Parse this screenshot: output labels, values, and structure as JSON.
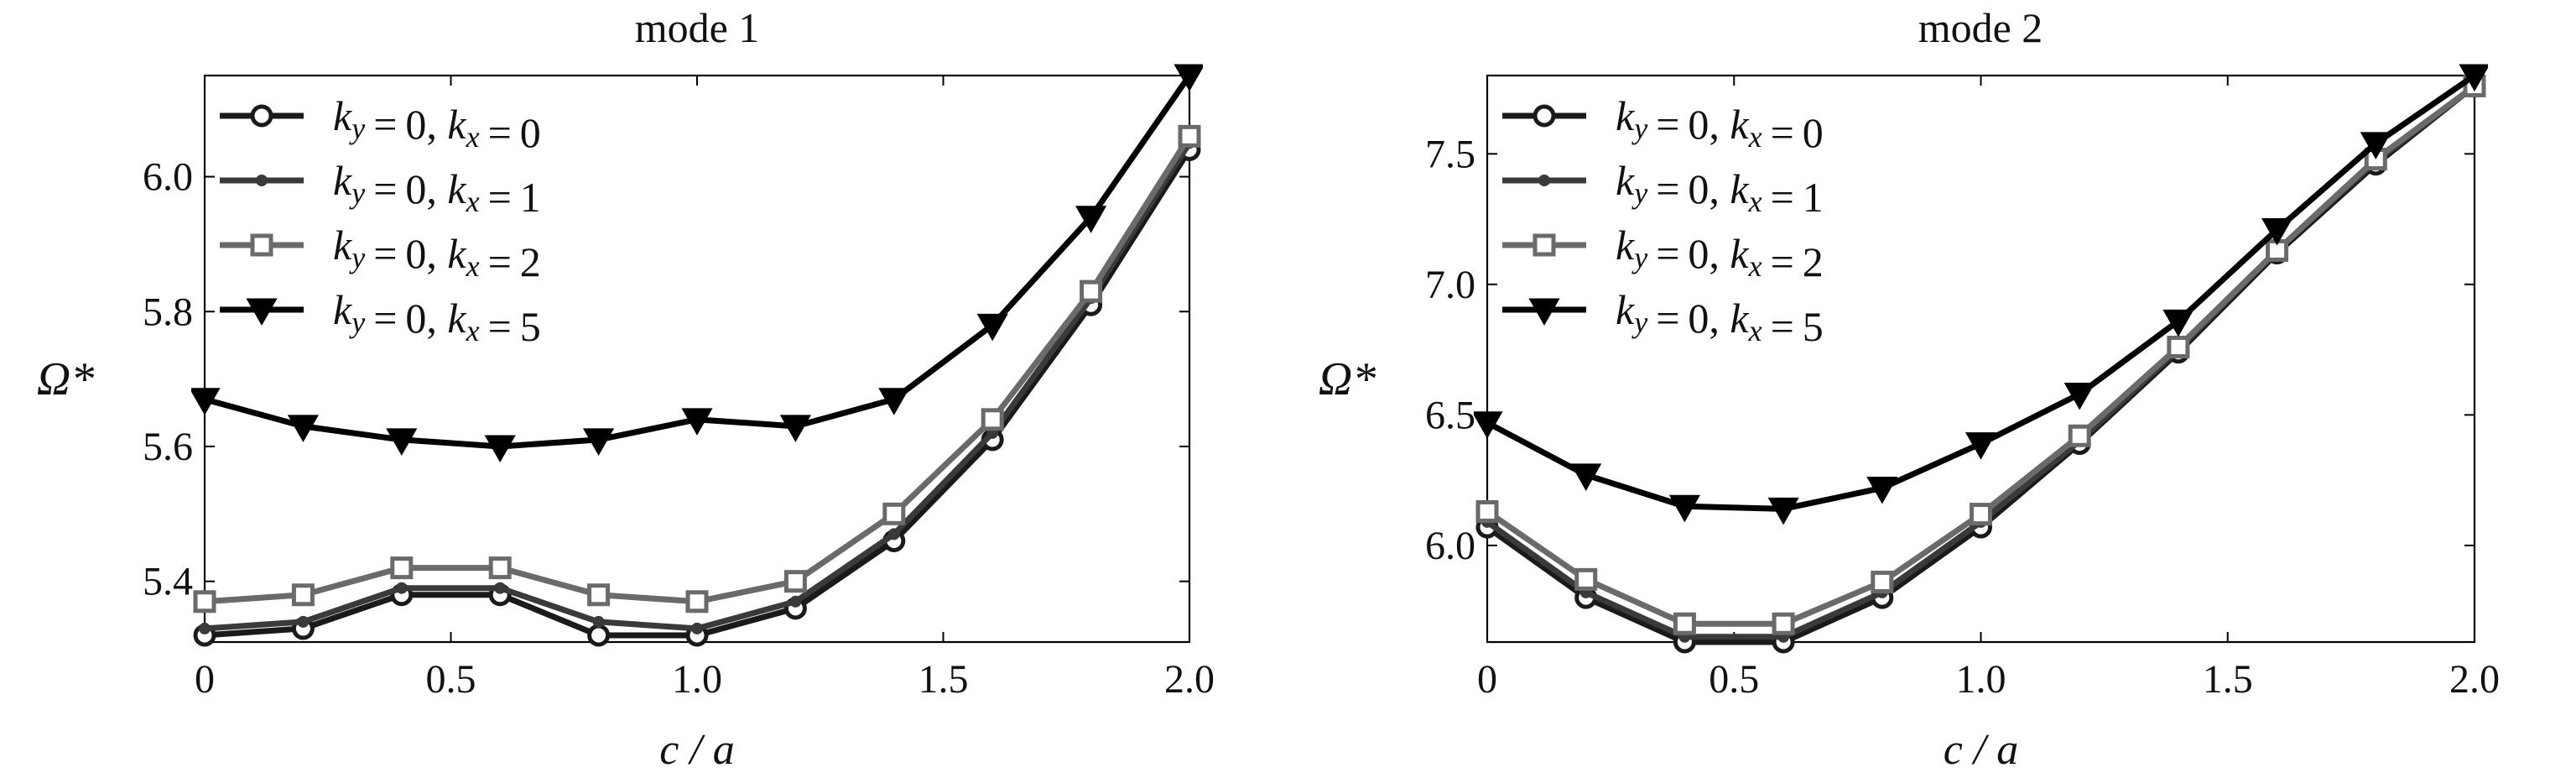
{
  "chart_data": [
    {
      "type": "line",
      "title": "mode 1",
      "xlabel": "c / a",
      "ylabel": "Ω*",
      "xlim": [
        0,
        2.0
      ],
      "ylim": [
        5.31,
        6.15
      ],
      "xticks": [
        "0",
        "0.5",
        "1.0",
        "1.5",
        "2.0"
      ],
      "yticks": [
        "5.4",
        "5.6",
        "5.8",
        "6.0"
      ],
      "grid": false,
      "legend": "top-left",
      "x": [
        0,
        0.2,
        0.4,
        0.6,
        0.8,
        1.0,
        1.2,
        1.4,
        1.6,
        1.8,
        2.0
      ],
      "series": [
        {
          "name_ky": "0",
          "name_kx": "0",
          "marker": "circle",
          "color": "#1a1a1a",
          "values": [
            5.32,
            5.33,
            5.38,
            5.38,
            5.32,
            5.32,
            5.36,
            5.46,
            5.61,
            5.81,
            6.04
          ]
        },
        {
          "name_ky": "0",
          "name_kx": "1",
          "marker": "dot",
          "color": "#3a3a3a",
          "values": [
            5.33,
            5.34,
            5.39,
            5.39,
            5.34,
            5.33,
            5.37,
            5.47,
            5.62,
            5.82,
            6.05
          ]
        },
        {
          "name_ky": "0",
          "name_kx": "2",
          "marker": "square",
          "color": "#6a6a6a",
          "values": [
            5.37,
            5.38,
            5.42,
            5.42,
            5.38,
            5.37,
            5.4,
            5.5,
            5.64,
            5.83,
            6.06
          ]
        },
        {
          "name_ky": "0",
          "name_kx": "5",
          "marker": "triangle-down",
          "color": "#000000",
          "values": [
            5.67,
            5.63,
            5.61,
            5.6,
            5.61,
            5.64,
            5.63,
            5.67,
            5.78,
            5.94,
            6.15
          ]
        }
      ]
    },
    {
      "type": "line",
      "title": "mode 2",
      "xlabel": "c / a",
      "ylabel": "Ω*",
      "xlim": [
        0,
        2.0
      ],
      "ylim": [
        5.63,
        7.8
      ],
      "xticks": [
        "0",
        "0.5",
        "1.0",
        "1.5",
        "2.0"
      ],
      "yticks": [
        "6.0",
        "6.5",
        "7.0",
        "7.5"
      ],
      "grid": false,
      "legend": "top-left",
      "x": [
        0,
        0.2,
        0.4,
        0.6,
        0.8,
        1.0,
        1.2,
        1.4,
        1.6,
        1.8,
        2.0
      ],
      "series": [
        {
          "name_ky": "0",
          "name_kx": "0",
          "marker": "circle",
          "color": "#1a1a1a",
          "values": [
            6.07,
            5.8,
            5.63,
            5.63,
            5.8,
            6.07,
            6.39,
            6.74,
            7.12,
            7.46,
            7.76
          ]
        },
        {
          "name_ky": "0",
          "name_kx": "1",
          "marker": "dot",
          "color": "#3a3a3a",
          "values": [
            6.09,
            5.82,
            5.65,
            5.65,
            5.82,
            6.09,
            6.4,
            6.75,
            7.13,
            7.47,
            7.76
          ]
        },
        {
          "name_ky": "0",
          "name_kx": "2",
          "marker": "square",
          "color": "#6a6a6a",
          "values": [
            6.13,
            5.87,
            5.7,
            5.7,
            5.86,
            6.12,
            6.42,
            6.76,
            7.13,
            7.48,
            7.76
          ]
        },
        {
          "name_ky": "0",
          "name_kx": "5",
          "marker": "triangle-down",
          "color": "#000000",
          "values": [
            6.47,
            6.27,
            6.15,
            6.14,
            6.22,
            6.39,
            6.58,
            6.86,
            7.21,
            7.54,
            7.8
          ]
        }
      ]
    }
  ]
}
